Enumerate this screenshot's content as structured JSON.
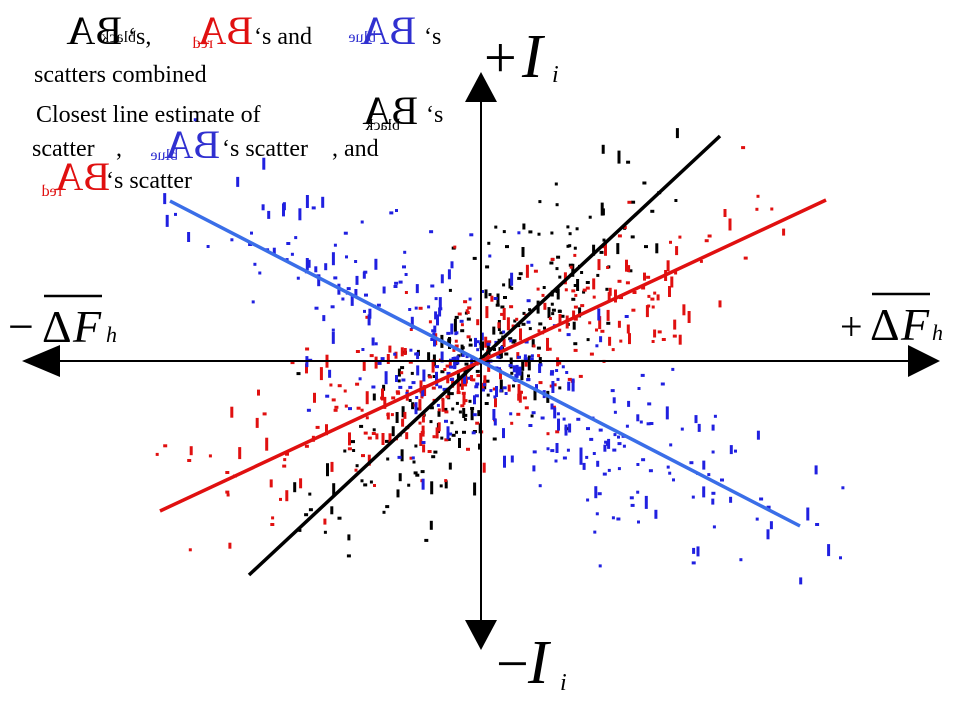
{
  "legend": {
    "line1_sep1": "‘s,",
    "line1_sep2": "‘s and",
    "line1_end": "‘s",
    "line2": "scatters combined",
    "line3": "Closest line estimate of",
    "line3_end": "‘s",
    "line4_start": "scatter",
    "line4_comma": ",",
    "line4_mid": "‘s scatter",
    "line4_end": ", and",
    "line5_end": "‘s scatter"
  },
  "symbols": {
    "ba": "BA",
    "black_sub": "black",
    "red_sub": "red",
    "blue_sub": "blue"
  },
  "axes": {
    "pos_i": "+",
    "neg_i": "−",
    "i_var": "I",
    "i_sub": "i",
    "neg_f": "−",
    "pos_f": "+",
    "delta": "Δ",
    "f_var": "F",
    "f_sub": "h"
  },
  "colors": {
    "black": "#000000",
    "red": "#e01010",
    "blue": "#2020e0",
    "blue_line": "#3a6ee8",
    "blue_label": "#3030d0"
  }
}
